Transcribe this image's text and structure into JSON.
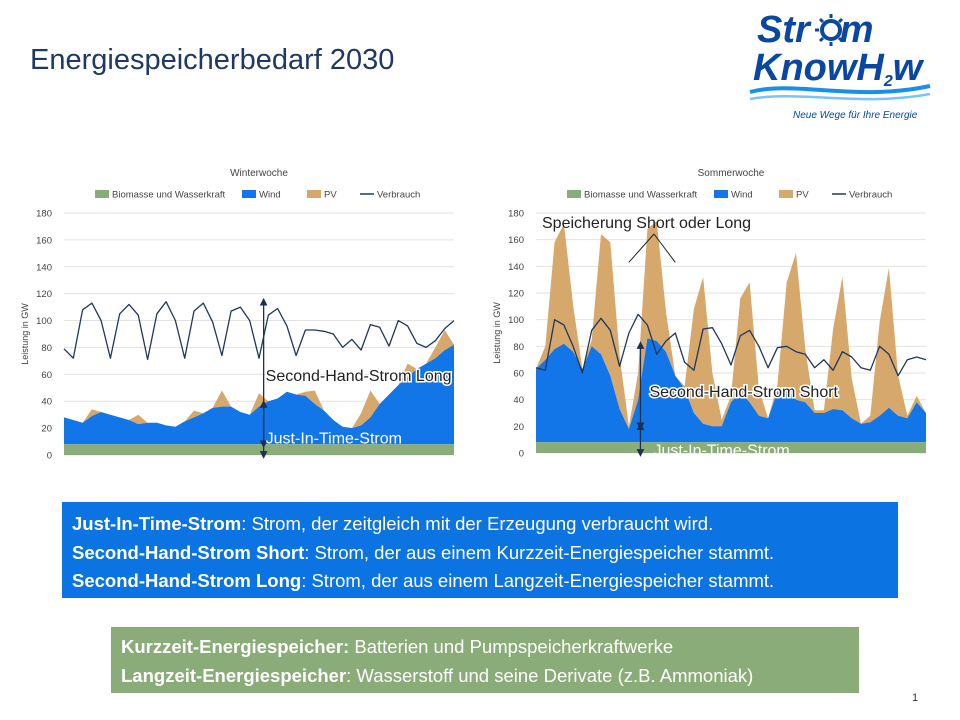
{
  "slide": {
    "title": "Energiespeicherbedarf 2030",
    "page_number": "1"
  },
  "logo": {
    "line1_left": "Str",
    "line1_right": "m",
    "line2_left": "KnowH",
    "line2_sub": "2",
    "line2_right": "w",
    "tagline": "Neue Wege für Ihre Energie",
    "color": "#0a47a3"
  },
  "colors": {
    "biomasse": "#8aac78",
    "wind": "#1376e8",
    "pv": "#d6a86c",
    "verbrauch": "#22375c",
    "blue_box": "#0b73e2",
    "green_box": "#8aac78"
  },
  "chart_data": [
    {
      "type": "area",
      "title": "Winterwoche",
      "ylabel": "Leistung in GW",
      "ylim": [
        0,
        180
      ],
      "yticks": [
        "0",
        "20",
        "40",
        "60",
        "80",
        "100",
        "120",
        "140",
        "160",
        "180"
      ],
      "legend": [
        "Biomasse und Wasserkraft",
        "Wind",
        "PV",
        "Verbrauch"
      ],
      "x": [
        0,
        4,
        8,
        12,
        16,
        20,
        24,
        28,
        32,
        36,
        40,
        44,
        48,
        52,
        56,
        60,
        64,
        68,
        72,
        76,
        80,
        84,
        88,
        92,
        96,
        100,
        104,
        108,
        112,
        116,
        120,
        124,
        128,
        132,
        136,
        140,
        144,
        148,
        152,
        156,
        160,
        164,
        168
      ],
      "series": [
        {
          "name": "Biomasse und Wasserkraft",
          "values": [
            8,
            8,
            8,
            8,
            8,
            8,
            8,
            8,
            8,
            8,
            8,
            8,
            8,
            8,
            8,
            8,
            8,
            8,
            8,
            8,
            8,
            8,
            8,
            8,
            8,
            8,
            8,
            8,
            8,
            8,
            8,
            8,
            8,
            8,
            8,
            8,
            8,
            8,
            8,
            8,
            8,
            8,
            8
          ]
        },
        {
          "name": "Wind",
          "values": [
            20,
            18,
            16,
            21,
            24,
            22,
            20,
            18,
            15,
            16,
            16,
            14,
            13,
            17,
            20,
            23,
            27,
            28,
            28,
            24,
            22,
            28,
            32,
            34,
            39,
            37,
            36,
            30,
            25,
            18,
            13,
            12,
            14,
            20,
            30,
            37,
            44,
            50,
            56,
            60,
            64,
            70,
            74
          ]
        },
        {
          "name": "PV",
          "values": [
            0,
            0,
            0,
            5,
            0,
            0,
            0,
            0,
            7,
            0,
            0,
            0,
            0,
            0,
            5,
            0,
            0,
            12,
            0,
            0,
            0,
            10,
            0,
            0,
            0,
            0,
            3,
            10,
            0,
            0,
            0,
            0,
            9,
            20,
            0,
            0,
            0,
            10,
            0,
            0,
            8,
            15,
            0
          ]
        },
        {
          "name": "Verbrauch",
          "values": [
            79,
            72,
            108,
            113,
            100,
            72,
            105,
            112,
            104,
            71,
            105,
            114,
            100,
            72,
            107,
            113,
            99,
            74,
            107,
            110,
            100,
            72,
            104,
            109,
            96,
            74,
            93,
            93,
            92,
            90,
            80,
            86,
            78,
            97,
            95,
            81,
            100,
            96,
            83,
            80,
            85,
            94,
            100
          ]
        }
      ],
      "annotations": [
        {
          "text": "Second-Hand-Strom Long",
          "arrow_from": 8,
          "arrow_to": 114,
          "arrow_x": 86
        },
        {
          "text": "Just-In-Time-Strom",
          "arrow_from": 0,
          "arrow_to": 38,
          "arrow_x": 86
        }
      ]
    },
    {
      "type": "area",
      "title": "Sommerwoche",
      "ylabel": "Leistung in GW",
      "ylim": [
        0,
        180
      ],
      "yticks": [
        "0",
        "20",
        "40",
        "60",
        "80",
        "100",
        "120",
        "140",
        "160",
        "180"
      ],
      "legend": [
        "Biomasse und Wasserkraft",
        "Wind",
        "PV",
        "Verbrauch"
      ],
      "x": [
        0,
        4,
        8,
        12,
        16,
        20,
        24,
        28,
        32,
        36,
        40,
        44,
        48,
        52,
        56,
        60,
        64,
        68,
        72,
        76,
        80,
        84,
        88,
        92,
        96,
        100,
        104,
        108,
        112,
        116,
        120,
        124,
        128,
        132,
        136,
        140,
        144,
        148,
        152,
        156,
        160,
        164,
        168
      ],
      "series": [
        {
          "name": "Biomasse und Wasserkraft",
          "values": [
            8,
            8,
            8,
            8,
            8,
            8,
            8,
            8,
            8,
            8,
            8,
            8,
            8,
            8,
            8,
            8,
            8,
            8,
            8,
            8,
            8,
            8,
            8,
            8,
            8,
            8,
            8,
            8,
            8,
            8,
            8,
            8,
            8,
            8,
            8,
            8,
            8,
            8,
            8,
            8,
            8,
            8,
            8
          ]
        },
        {
          "name": "Wind",
          "values": [
            55,
            62,
            70,
            74,
            68,
            55,
            72,
            66,
            50,
            25,
            10,
            32,
            78,
            76,
            68,
            50,
            40,
            22,
            14,
            12,
            12,
            30,
            38,
            30,
            20,
            18,
            38,
            40,
            32,
            30,
            22,
            22,
            25,
            24,
            18,
            14,
            15,
            20,
            26,
            20,
            18,
            30,
            22
          ]
        },
        {
          "name": "PV",
          "values": [
            0,
            10,
            80,
            90,
            35,
            0,
            5,
            90,
            100,
            40,
            2,
            20,
            82,
            90,
            30,
            0,
            2,
            78,
            110,
            40,
            5,
            5,
            70,
            90,
            20,
            0,
            5,
            80,
            110,
            40,
            2,
            2,
            60,
            100,
            30,
            0,
            5,
            70,
            105,
            30,
            2,
            5,
            0
          ]
        },
        {
          "name": "Verbrauch",
          "values": [
            64,
            62,
            100,
            96,
            80,
            60,
            92,
            101,
            92,
            65,
            90,
            104,
            96,
            74,
            84,
            90,
            68,
            62,
            93,
            94,
            82,
            66,
            88,
            92,
            80,
            64,
            79,
            80,
            76,
            74,
            64,
            70,
            62,
            76,
            72,
            64,
            62,
            80,
            74,
            58,
            70,
            72,
            70
          ]
        }
      ],
      "annotations": [
        {
          "text": "Speicherung Short oder Long",
          "lines_to": [
            {
              "x": 40,
              "y": 143
            },
            {
              "x": 60,
              "y": 143
            }
          ]
        },
        {
          "text": "Second-Hand-Strom Short",
          "arrow_from": 20,
          "arrow_to": 81,
          "arrow_x": 45
        },
        {
          "text": "Just-In-Time-Strom",
          "arrow_from": 0,
          "arrow_to": 20,
          "arrow_x": 45
        }
      ]
    }
  ],
  "definitions": [
    {
      "term": "Just-In-Time-Strom",
      "text": ": Strom, der zeitgleich mit der Erzeugung verbraucht wird."
    },
    {
      "term": "Second-Hand-Strom Short",
      "text": ": Strom, der aus einem Kurzzeit-Energiespeicher stammt."
    },
    {
      "term": "Second-Hand-Strom Long",
      "text": ": Strom, der aus einem Langzeit-Energiespeicher stammt."
    }
  ],
  "storage_types": [
    {
      "term": "Kurzzeit-Energiespeicher:",
      "text": " Batterien und Pumpspeicherkraftwerke"
    },
    {
      "term": "Langzeit-Energiespeicher",
      "text": ": Wasserstoff und seine Derivate (z.B. Ammoniak)"
    }
  ]
}
